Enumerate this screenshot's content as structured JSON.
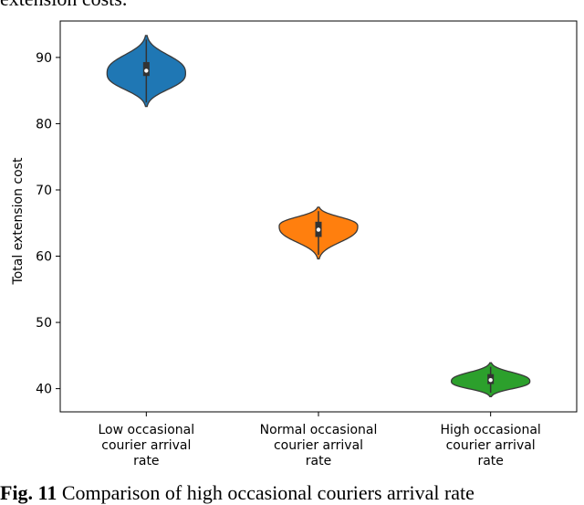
{
  "page": {
    "top_text": "extension costs.",
    "caption_prefix": "Fig. 11",
    "caption_text": "Comparison of high occasional couriers arrival rate"
  },
  "chart_data": {
    "type": "violin",
    "ylabel": "Total extension cost",
    "xlabel": "",
    "ylim": [
      36.5,
      95.5
    ],
    "yticks": [
      40,
      50,
      60,
      70,
      80,
      90
    ],
    "categories": [
      [
        "Low occasional",
        "courier arrival",
        "rate"
      ],
      [
        "Normal occasional",
        "courier arrival",
        "rate"
      ],
      [
        "High occasional",
        "courier arrival",
        "rate"
      ]
    ],
    "series": [
      {
        "color": "#1f77b4",
        "min": 82.6,
        "max": 93.3,
        "q1": 87.2,
        "median": 88.0,
        "q3": 89.3,
        "mode": 87.6
      },
      {
        "color": "#ff7f0e",
        "min": 59.6,
        "max": 67.4,
        "q1": 62.9,
        "median": 64.0,
        "q3": 65.2,
        "mode": 64.5
      },
      {
        "color": "#2ca02c",
        "min": 38.8,
        "max": 43.9,
        "q1": 40.7,
        "median": 41.3,
        "q3": 42.2,
        "mode": 41.1
      }
    ]
  }
}
